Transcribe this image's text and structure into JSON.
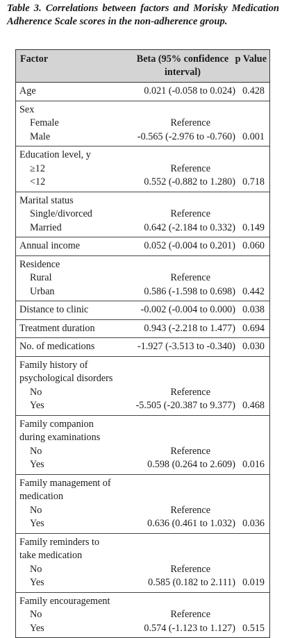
{
  "caption": "Table 3. Correlations between factors and Morisky Medication Adherence Scale scores in the non-adherence group.",
  "headers": {
    "factor": "Factor",
    "beta_line1": "Beta (95% confidence",
    "beta_line2": "interval)",
    "p": "p Value"
  },
  "rows": {
    "age": {
      "label": "Age",
      "beta": "0.021 (-0.058 to 0.024)",
      "p": "0.428"
    },
    "sex": {
      "label": "Sex",
      "female": "Female",
      "female_beta": "Reference",
      "male": "Male",
      "male_beta": "-0.565 (-2.976 to -0.760)",
      "male_p": "0.001"
    },
    "education": {
      "label": "Education level, y",
      "ge12": "≥12",
      "ge12_beta": "Reference",
      "lt12": "<12",
      "lt12_beta": "0.552 (-0.882 to 1.280)",
      "lt12_p": "0.718"
    },
    "marital": {
      "label": "Marital status",
      "single": "Single/divorced",
      "single_beta": "Reference",
      "married": "Married",
      "married_beta": "0.642 (-2.184 to 0.332)",
      "married_p": "0.149"
    },
    "income": {
      "label": "Annual income",
      "beta": "0.052 (-0.004 to 0.201)",
      "p": "0.060"
    },
    "residence": {
      "label": "Residence",
      "rural": "Rural",
      "rural_beta": "Reference",
      "urban": "Urban",
      "urban_beta": "0.586 (-1.598 to 0.698)",
      "urban_p": "0.442"
    },
    "distance": {
      "label": "Distance to clinic",
      "beta": "-0.002 (-0.004 to 0.000)",
      "p": "0.038"
    },
    "duration": {
      "label": "Treatment duration",
      "beta": "0.943 (-2.218 to 1.477)",
      "p": "0.694"
    },
    "medications": {
      "label": "No. of medications",
      "beta": "-1.927 (-3.513 to -0.340)",
      "p": "0.030"
    },
    "history": {
      "label1": "Family history of",
      "label2": "psychological disorders",
      "no": "No",
      "no_beta": "Reference",
      "yes": "Yes",
      "yes_beta": "-5.505 (-20.387 to 9.377)",
      "yes_p": "0.468"
    },
    "companion": {
      "label1": "Family companion",
      "label2": "during examinations",
      "no": "No",
      "no_beta": "Reference",
      "yes": "Yes",
      "yes_beta": "0.598 (0.264 to 2.609)",
      "yes_p": "0.016"
    },
    "management": {
      "label1": "Family management of",
      "label2": "medication",
      "no": "No",
      "no_beta": "Reference",
      "yes": "Yes",
      "yes_beta": "0.636 (0.461 to 1.032)",
      "yes_p": "0.036"
    },
    "reminders": {
      "label1": "Family reminders to",
      "label2": "take medication",
      "no": "No",
      "no_beta": "Reference",
      "yes": "Yes",
      "yes_beta": "0.585 (0.182 to 2.111)",
      "yes_p": "0.019"
    },
    "encouragement": {
      "label": "Family encouragement",
      "no": "No",
      "no_beta": "Reference",
      "yes": "Yes",
      "yes_beta": "0.574 (-1.123 to 1.127)",
      "yes_p": "0.515"
    }
  }
}
